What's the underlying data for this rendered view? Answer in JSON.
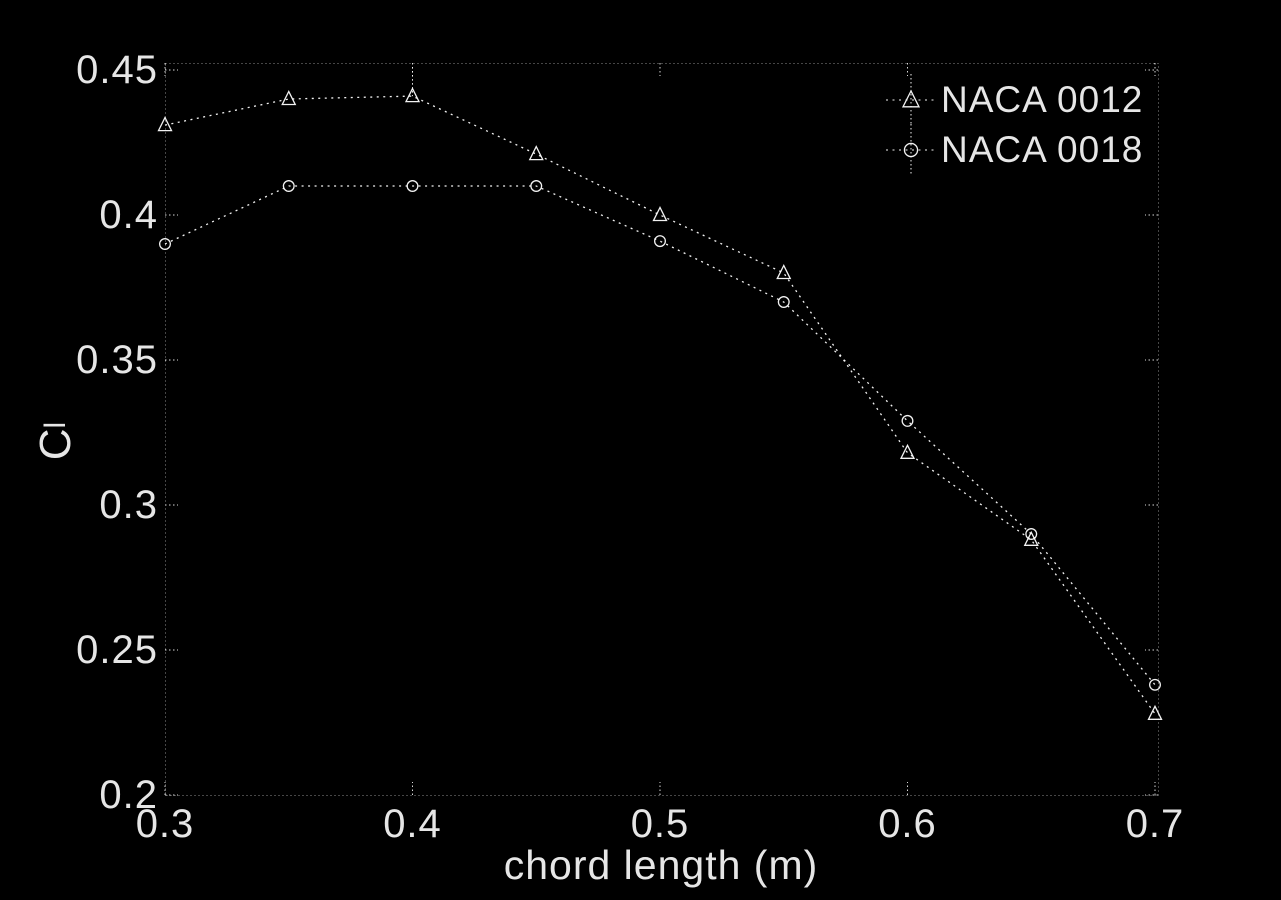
{
  "colors": {
    "background": "#000000",
    "foreground": "#ffffff"
  },
  "chart_data": {
    "type": "line",
    "title": "",
    "xlabel": "chord length (m)",
    "ylabel": "Cl",
    "ylabel_main": "C",
    "ylabel_sub": "l",
    "xlim": [
      0.3,
      0.7
    ],
    "ylim": [
      0.2,
      0.45
    ],
    "x_ticks": [
      0.3,
      0.4,
      0.5,
      0.6,
      0.7
    ],
    "y_ticks": [
      0.2,
      0.25,
      0.3,
      0.35,
      0.4,
      0.45
    ],
    "grid": false,
    "box": true,
    "legend_position": "top-right",
    "line_style": "dotted",
    "marker_fill": "none",
    "x": [
      0.3,
      0.35,
      0.4,
      0.45,
      0.5,
      0.55,
      0.6,
      0.65,
      0.7
    ],
    "series": [
      {
        "name": "NACA 0012",
        "marker": "triangle",
        "values": [
          0.431,
          0.44,
          0.441,
          0.421,
          0.4,
          0.38,
          0.318,
          0.288,
          0.228
        ],
        "visible_error": {
          "x": 0.4,
          "upper_value": 0.451
        }
      },
      {
        "name": "NACA 0018",
        "marker": "circle",
        "values": [
          0.39,
          0.41,
          0.41,
          0.41,
          0.391,
          0.37,
          0.329,
          0.29,
          0.238
        ]
      }
    ]
  }
}
